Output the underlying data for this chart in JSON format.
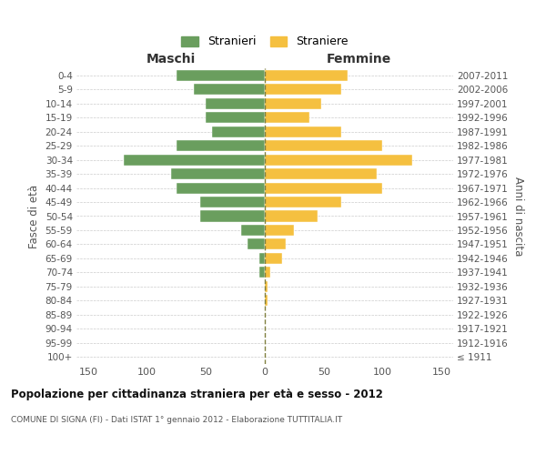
{
  "age_groups": [
    "100+",
    "95-99",
    "90-94",
    "85-89",
    "80-84",
    "75-79",
    "70-74",
    "65-69",
    "60-64",
    "55-59",
    "50-54",
    "45-49",
    "40-44",
    "35-39",
    "30-34",
    "25-29",
    "20-24",
    "15-19",
    "10-14",
    "5-9",
    "0-4"
  ],
  "birth_years": [
    "≤ 1911",
    "1912-1916",
    "1917-1921",
    "1922-1926",
    "1927-1931",
    "1932-1936",
    "1937-1941",
    "1942-1946",
    "1947-1951",
    "1952-1956",
    "1957-1961",
    "1962-1966",
    "1967-1971",
    "1972-1976",
    "1977-1981",
    "1982-1986",
    "1987-1991",
    "1992-1996",
    "1997-2001",
    "2002-2006",
    "2007-2011"
  ],
  "maschi": [
    0,
    0,
    0,
    0,
    0,
    0,
    5,
    5,
    15,
    20,
    55,
    55,
    75,
    80,
    120,
    75,
    45,
    50,
    50,
    60,
    75
  ],
  "femmine": [
    0,
    0,
    0,
    0,
    2,
    2,
    5,
    15,
    18,
    25,
    45,
    65,
    100,
    95,
    125,
    100,
    65,
    38,
    48,
    65,
    70
  ],
  "maschi_color": "#6a9e5e",
  "femmine_color": "#f5c040",
  "grid_color": "#cccccc",
  "center_line_color": "#808040",
  "title": "Popolazione per cittadinanza straniera per età e sesso - 2012",
  "subtitle": "COMUNE DI SIGNA (FI) - Dati ISTAT 1° gennaio 2012 - Elaborazione TUTTITALIA.IT",
  "label_maschi": "Maschi",
  "label_femmine": "Femmine",
  "ylabel_left": "Fasce di età",
  "ylabel_right": "Anni di nascita",
  "legend_stranieri": "Stranieri",
  "legend_straniere": "Straniere",
  "xlim": 160
}
